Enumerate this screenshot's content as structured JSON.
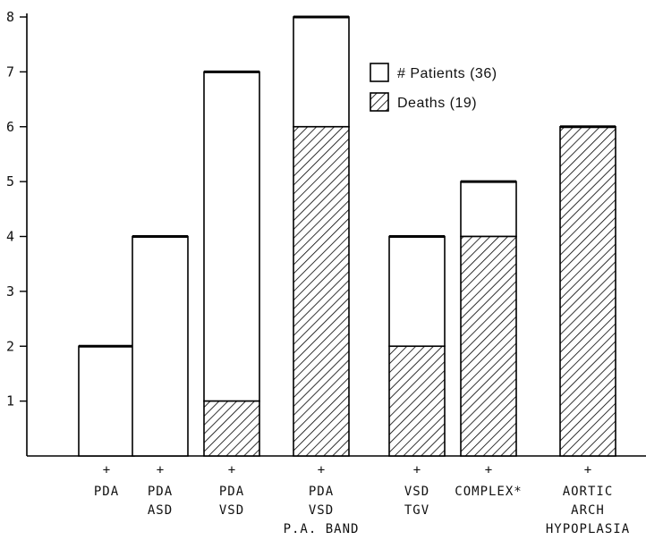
{
  "chart_data": {
    "type": "bar",
    "categories": [
      [
        "+",
        "PDA"
      ],
      [
        "+",
        "PDA",
        "ASD"
      ],
      [
        "+",
        "PDA",
        "VSD"
      ],
      [
        "+",
        "PDA",
        "VSD",
        "P.A. BAND"
      ],
      [
        "+",
        "VSD",
        "TGV"
      ],
      [
        "+",
        "COMPLEX*"
      ],
      [
        "+",
        "AORTIC",
        "ARCH",
        "HYPOPLASIA"
      ]
    ],
    "series": [
      {
        "name": "# Patients (36)",
        "values": [
          2,
          4,
          7,
          8,
          4,
          5,
          6
        ],
        "pattern": "open"
      },
      {
        "name": "Deaths (19)",
        "values": [
          0,
          0,
          1,
          6,
          2,
          4,
          6
        ],
        "pattern": "hatched"
      }
    ],
    "ylim": [
      0,
      8
    ],
    "yticks": [
      "1",
      "2",
      "3",
      "4",
      "5",
      "6",
      "7",
      "8"
    ],
    "legend": "top-right",
    "grid": false,
    "title": "",
    "xlabel": "",
    "ylabel": ""
  },
  "colors": {
    "ink": "#000000",
    "paper": "#ffffff"
  }
}
